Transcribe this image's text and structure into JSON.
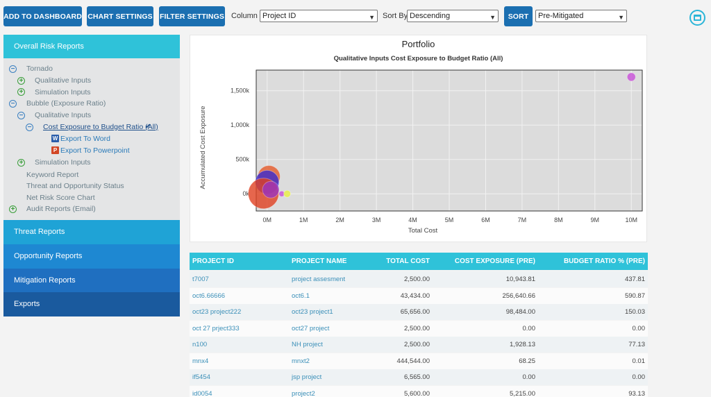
{
  "toolbar": {
    "add_dashboard": "ADD TO DASHBOARD",
    "chart_settings": "CHART SETTINGS",
    "filter_settings": "FILTER SETTINGS",
    "column_label": "Column :",
    "column_value": "Project ID",
    "sortby_label": "Sort By:",
    "sortby_value": "Descending",
    "sort_button": "SORT",
    "mitigation_value": "Pre-Mitigated",
    "corner_icon": "window-icon"
  },
  "sidebar": {
    "header": "Overall Risk Reports",
    "tree": {
      "tornado": "Tornado",
      "tornado_qual": "Qualitative Inputs",
      "tornado_sim": "Simulation Inputs",
      "bubble": "Bubble (Exposure Ratio)",
      "bubble_qual": "Qualitative Inputs",
      "cost_exposure": "Cost Exposure to Budget Ratio (All)",
      "export_word": "Export To Word",
      "export_ppt": "Export To Powerpoint",
      "bubble_sim": "Simulation Inputs",
      "keyword": "Keyword Report",
      "threat_opp": "Threat and Opportunity Status",
      "net_risk": "Net Risk Score Chart",
      "audit": "Audit Reports (Email)"
    },
    "sections": {
      "threat": "Threat Reports",
      "opportunity": "Opportunity Reports",
      "mitigation": "Mitigation Reports",
      "exports": "Exports"
    },
    "colors": {
      "header": "#2fc2d9",
      "threat": "#1fa3d6",
      "opportunity": "#1e88d2",
      "mitigation": "#1f6fc0",
      "exports": "#1a5a9e"
    }
  },
  "chart_data": {
    "type": "scatter",
    "title": "Portfolio",
    "subtitle": "Qualitative Inputs Cost Exposure to Budget Ratio (All)",
    "xlabel": "Total Cost",
    "ylabel": "Accumulated Cost Exposure",
    "xlim": [
      -0.3,
      10.3
    ],
    "ylim": [
      -250,
      1800
    ],
    "x_ticks": [
      0,
      1,
      2,
      3,
      4,
      5,
      6,
      7,
      8,
      9,
      10
    ],
    "x_tick_labels": [
      "0M",
      "1M",
      "2M",
      "3M",
      "4M",
      "5M",
      "6M",
      "7M",
      "8M",
      "9M",
      "10M"
    ],
    "y_ticks": [
      0,
      500,
      1000,
      1500
    ],
    "y_tick_labels": [
      "0k",
      "500k",
      "1,000k",
      "1,500k"
    ],
    "grid": true,
    "points": [
      {
        "x": 0.05,
        "y": 250,
        "r": 16,
        "color": "#e55a2b"
      },
      {
        "x": 0.0,
        "y": 170,
        "r": 17,
        "color": "#3a2bd0"
      },
      {
        "x": -0.1,
        "y": 5,
        "r": 22,
        "color": "#e04020"
      },
      {
        "x": 0.1,
        "y": 60,
        "r": 12,
        "color": "#9a35c0"
      },
      {
        "x": 0.4,
        "y": 0,
        "r": 4,
        "color": "#c84fd8"
      },
      {
        "x": 0.55,
        "y": 0,
        "r": 5,
        "color": "#e8f040"
      },
      {
        "x": 10.0,
        "y": 1700,
        "r": 6,
        "color": "#c84fd8"
      }
    ]
  },
  "table": {
    "headers": [
      "PROJECT ID",
      "PROJECT NAME",
      "TOTAL COST",
      "COST EXPOSURE (PRE)",
      "BUDGET RATIO % (PRE)"
    ],
    "rows": [
      [
        "t7007",
        "project assesment",
        "2,500.00",
        "10,943.81",
        "437.81"
      ],
      [
        "oct6.66666",
        "oct6.1",
        "43,434.00",
        "256,640.66",
        "590.87"
      ],
      [
        "oct23 project222",
        "oct23 project1",
        "65,656.00",
        "98,484.00",
        "150.03"
      ],
      [
        "oct 27 prject333",
        "oct27 project",
        "2,500.00",
        "0.00",
        "0.00"
      ],
      [
        "n100",
        "NH project",
        "2,500.00",
        "1,928.13",
        "77.13"
      ],
      [
        "mnx4",
        "mnxt2",
        "444,544.00",
        "68.25",
        "0.01"
      ],
      [
        "if5454",
        "jsp project",
        "6,565.00",
        "0.00",
        "0.00"
      ],
      [
        "id0054",
        "project2",
        "5,600.00",
        "5,215.00",
        "93.13"
      ]
    ]
  }
}
